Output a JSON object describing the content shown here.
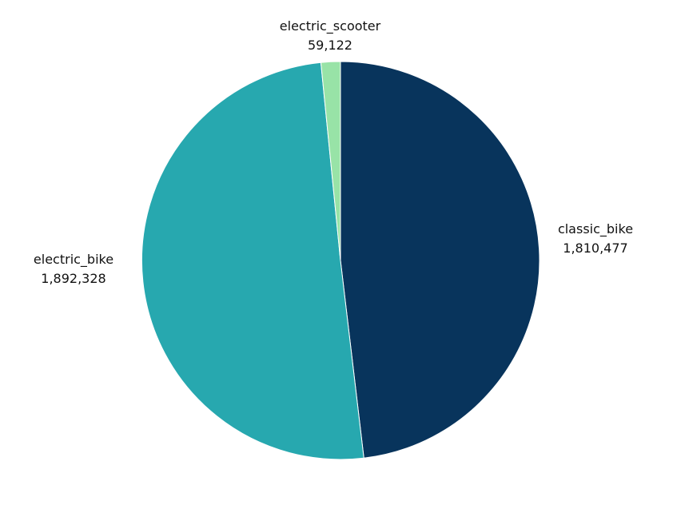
{
  "chart_data": {
    "type": "pie",
    "title": "",
    "start_angle_deg": 0,
    "direction": "clockwise",
    "legend": "none",
    "slices": [
      {
        "label": "classic_bike",
        "value": 1810477,
        "value_text": "1,810,477",
        "color": "#08345C"
      },
      {
        "label": "electric_bike",
        "value": 1892328,
        "value_text": "1,892,328",
        "color": "#27A8AF"
      },
      {
        "label": "electric_scooter",
        "value": 59122,
        "value_text": "59,122",
        "color": "#98E3A7"
      }
    ]
  }
}
